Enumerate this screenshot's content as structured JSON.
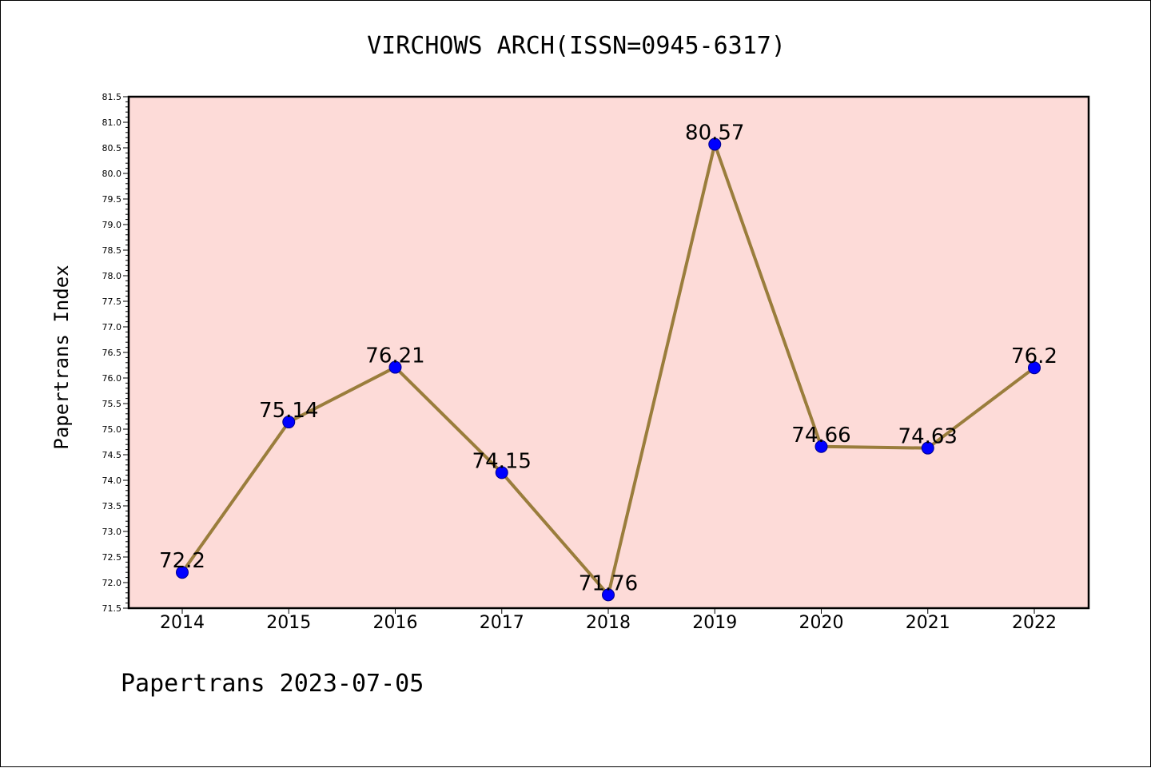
{
  "page": {
    "footer": "Papertrans 2023-07-05"
  },
  "colors": {
    "plot_background": "#fddbd8",
    "line": "#9a7d3c",
    "marker": "#0000ff"
  },
  "chart_data": {
    "type": "line",
    "title": "VIRCHOWS ARCH(ISSN=0945-6317)",
    "xlabel": "",
    "ylabel": "Papertrans Index",
    "categories": [
      "2014",
      "2015",
      "2016",
      "2017",
      "2018",
      "2019",
      "2020",
      "2021",
      "2022"
    ],
    "series": [
      {
        "values": [
          72.2,
          75.14,
          76.21,
          74.15,
          71.76,
          80.57,
          74.66,
          74.63,
          76.2
        ],
        "labels": [
          "72.2",
          "75.14",
          "76.21",
          "74.15",
          "71.76",
          "80.57",
          "74.66",
          "74.63",
          "76.2"
        ]
      }
    ],
    "ylim": [
      71.5,
      81.5
    ],
    "ytick_step": 0.5,
    "grid": false,
    "legend": "none"
  }
}
